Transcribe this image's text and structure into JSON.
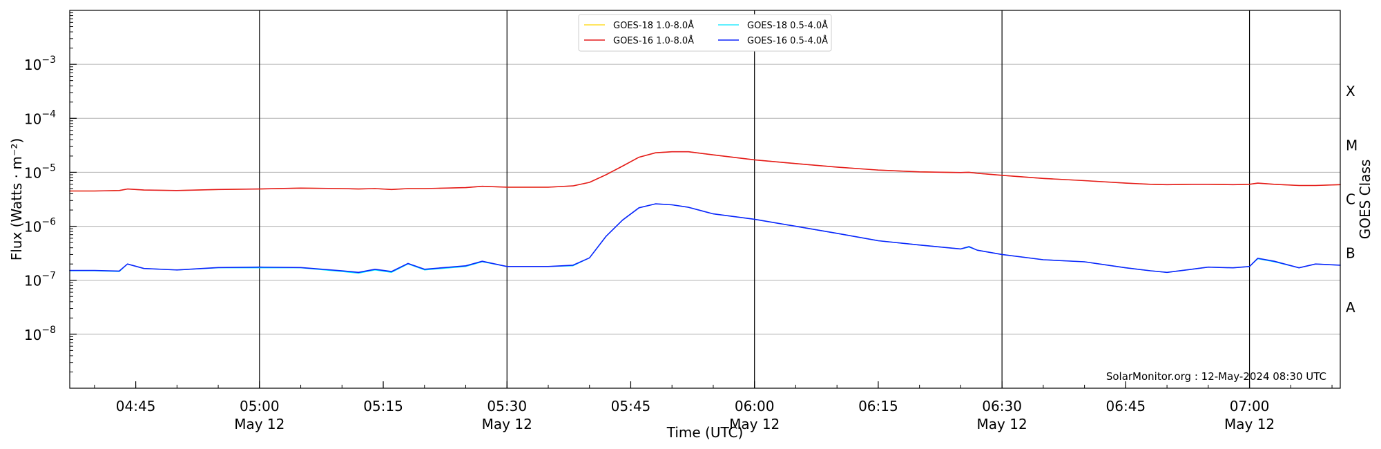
{
  "chart_data": {
    "type": "line",
    "xlabel": "Time (UTC)",
    "ylabel": "Flux (Watts · m⁻²)",
    "ylabel_right": "GOES Class",
    "yscale": "log",
    "ylim": [
      1e-09,
      0.01
    ],
    "xlim": [
      "2024-05-12 04:37",
      "2024-05-12 07:11"
    ],
    "grid": "horizontal at decades, vertical at half-hour marks",
    "legend_position": "top-center",
    "credit": "SolarMonitor.org : 12-May-2024 08:30 UTC",
    "y_ticks": [
      {
        "value": 0.001,
        "base": "10",
        "exp": "−3"
      },
      {
        "value": 0.0001,
        "base": "10",
        "exp": "−4"
      },
      {
        "value": 1e-05,
        "base": "10",
        "exp": "−5"
      },
      {
        "value": 1e-06,
        "base": "10",
        "exp": "−6"
      },
      {
        "value": 1e-07,
        "base": "10",
        "exp": "−7"
      },
      {
        "value": 1e-08,
        "base": "10",
        "exp": "−8"
      }
    ],
    "x_ticks": [
      {
        "time": "2024-05-12 04:45",
        "label": "04:45",
        "sublabel": ""
      },
      {
        "time": "2024-05-12 05:00",
        "label": "05:00",
        "sublabel": "May 12"
      },
      {
        "time": "2024-05-12 05:15",
        "label": "05:15",
        "sublabel": ""
      },
      {
        "time": "2024-05-12 05:30",
        "label": "05:30",
        "sublabel": "May 12"
      },
      {
        "time": "2024-05-12 05:45",
        "label": "05:45",
        "sublabel": ""
      },
      {
        "time": "2024-05-12 06:00",
        "label": "06:00",
        "sublabel": "May 12"
      },
      {
        "time": "2024-05-12 06:15",
        "label": "06:15",
        "sublabel": ""
      },
      {
        "time": "2024-05-12 06:30",
        "label": "06:30",
        "sublabel": "May 12"
      },
      {
        "time": "2024-05-12 06:45",
        "label": "06:45",
        "sublabel": ""
      },
      {
        "time": "2024-05-12 07:00",
        "label": "07:00",
        "sublabel": "May 12"
      }
    ],
    "goes_classes": [
      {
        "label": "X",
        "flux": 0.000316
      },
      {
        "label": "M",
        "flux": 3.16e-05
      },
      {
        "label": "C",
        "flux": 3.16e-06
      },
      {
        "label": "B",
        "flux": 3.16e-07
      },
      {
        "label": "A",
        "flux": 3.16e-08
      }
    ],
    "x": [
      "2024-05-12 04:37",
      "2024-05-12 04:40",
      "2024-05-12 04:43",
      "2024-05-12 04:44",
      "2024-05-12 04:46",
      "2024-05-12 04:50",
      "2024-05-12 04:55",
      "2024-05-12 05:00",
      "2024-05-12 05:05",
      "2024-05-12 05:10",
      "2024-05-12 05:12",
      "2024-05-12 05:14",
      "2024-05-12 05:16",
      "2024-05-12 05:18",
      "2024-05-12 05:20",
      "2024-05-12 05:25",
      "2024-05-12 05:27",
      "2024-05-12 05:30",
      "2024-05-12 05:35",
      "2024-05-12 05:38",
      "2024-05-12 05:40",
      "2024-05-12 05:42",
      "2024-05-12 05:44",
      "2024-05-12 05:46",
      "2024-05-12 05:48",
      "2024-05-12 05:50",
      "2024-05-12 05:52",
      "2024-05-12 05:55",
      "2024-05-12 06:00",
      "2024-05-12 06:05",
      "2024-05-12 06:10",
      "2024-05-12 06:15",
      "2024-05-12 06:20",
      "2024-05-12 06:25",
      "2024-05-12 06:26",
      "2024-05-12 06:27",
      "2024-05-12 06:30",
      "2024-05-12 06:35",
      "2024-05-12 06:40",
      "2024-05-12 06:45",
      "2024-05-12 06:48",
      "2024-05-12 06:50",
      "2024-05-12 06:53",
      "2024-05-12 06:55",
      "2024-05-12 06:58",
      "2024-05-12 07:00",
      "2024-05-12 07:01",
      "2024-05-12 07:03",
      "2024-05-12 07:06",
      "2024-05-12 07:08",
      "2024-05-12 07:11"
    ],
    "series": [
      {
        "name": "GOES-18 1.0-8.0Å",
        "color": "#ffd500",
        "width": 1.3,
        "values": [
          4.5e-06,
          4.5e-06,
          4.6e-06,
          4.9e-06,
          4.7e-06,
          4.6e-06,
          4.8e-06,
          4.9e-06,
          5.1e-06,
          5e-06,
          4.9e-06,
          5e-06,
          4.8e-06,
          5e-06,
          5e-06,
          5.2e-06,
          5.5e-06,
          5.3e-06,
          5.3e-06,
          5.6e-06,
          6.5e-06,
          9e-06,
          1.3e-05,
          1.9e-05,
          2.3e-05,
          2.4e-05,
          2.4e-05,
          2.1e-05,
          1.7e-05,
          1.45e-05,
          1.25e-05,
          1.1e-05,
          1.02e-05,
          9.9e-06,
          1e-05,
          9.6e-06,
          8.8e-06,
          7.7e-06,
          7e-06,
          6.3e-06,
          6e-06,
          5.9e-06,
          6e-06,
          6e-06,
          5.9e-06,
          6e-06,
          6.3e-06,
          6e-06,
          5.7e-06,
          5.7e-06,
          5.9e-06
        ]
      },
      {
        "name": "GOES-16 1.0-8.0Å",
        "color": "#e41a1c",
        "width": 1.6,
        "values": [
          4.5e-06,
          4.5e-06,
          4.6e-06,
          4.9e-06,
          4.7e-06,
          4.6e-06,
          4.8e-06,
          4.9e-06,
          5.1e-06,
          5e-06,
          4.9e-06,
          5e-06,
          4.8e-06,
          5e-06,
          5e-06,
          5.2e-06,
          5.5e-06,
          5.3e-06,
          5.3e-06,
          5.6e-06,
          6.5e-06,
          9e-06,
          1.3e-05,
          1.9e-05,
          2.3e-05,
          2.4e-05,
          2.4e-05,
          2.1e-05,
          1.7e-05,
          1.45e-05,
          1.25e-05,
          1.1e-05,
          1.02e-05,
          9.9e-06,
          1e-05,
          9.6e-06,
          8.8e-06,
          7.7e-06,
          7e-06,
          6.3e-06,
          6e-06,
          5.9e-06,
          6e-06,
          6e-06,
          5.9e-06,
          6e-06,
          6.3e-06,
          6e-06,
          5.7e-06,
          5.7e-06,
          5.9e-06
        ]
      },
      {
        "name": "GOES-18 0.5-4.0Å",
        "color": "#00e5ff",
        "width": 1.3,
        "values": [
          1.5e-07,
          1.5e-07,
          1.45e-07,
          2e-07,
          1.65e-07,
          1.55e-07,
          1.7e-07,
          1.7e-07,
          1.7e-07,
          1.45e-07,
          1.35e-07,
          1.55e-07,
          1.4e-07,
          2e-07,
          1.55e-07,
          1.8e-07,
          2.2e-07,
          1.8e-07,
          1.8e-07,
          1.85e-07,
          2.6e-07,
          6.5e-07,
          1.3e-06,
          2.2e-06,
          2.6e-06,
          2.5e-06,
          2.25e-06,
          1.7e-06,
          1.35e-06,
          1e-06,
          7.4e-07,
          5.4e-07,
          4.5e-07,
          3.8e-07,
          4.1e-07,
          3.6e-07,
          3e-07,
          2.4e-07,
          2.2e-07,
          1.7e-07,
          1.5e-07,
          1.4e-07,
          1.6e-07,
          1.75e-07,
          1.7e-07,
          1.8e-07,
          2.5e-07,
          2.2e-07,
          1.7e-07,
          2e-07,
          1.9e-07
        ]
      },
      {
        "name": "GOES-16 0.5-4.0Å",
        "color": "#0b24fb",
        "width": 1.6,
        "values": [
          1.52e-07,
          1.52e-07,
          1.48e-07,
          2e-07,
          1.65e-07,
          1.55e-07,
          1.72e-07,
          1.75e-07,
          1.72e-07,
          1.5e-07,
          1.4e-07,
          1.6e-07,
          1.45e-07,
          2.05e-07,
          1.6e-07,
          1.85e-07,
          2.25e-07,
          1.8e-07,
          1.8e-07,
          1.9e-07,
          2.6e-07,
          6.5e-07,
          1.3e-06,
          2.2e-06,
          2.6e-06,
          2.5e-06,
          2.25e-06,
          1.7e-06,
          1.35e-06,
          1e-06,
          7.4e-07,
          5.4e-07,
          4.5e-07,
          3.8e-07,
          4.2e-07,
          3.6e-07,
          3e-07,
          2.4e-07,
          2.2e-07,
          1.7e-07,
          1.5e-07,
          1.4e-07,
          1.6e-07,
          1.75e-07,
          1.7e-07,
          1.8e-07,
          2.55e-07,
          2.25e-07,
          1.7e-07,
          2e-07,
          1.9e-07
        ]
      }
    ]
  }
}
